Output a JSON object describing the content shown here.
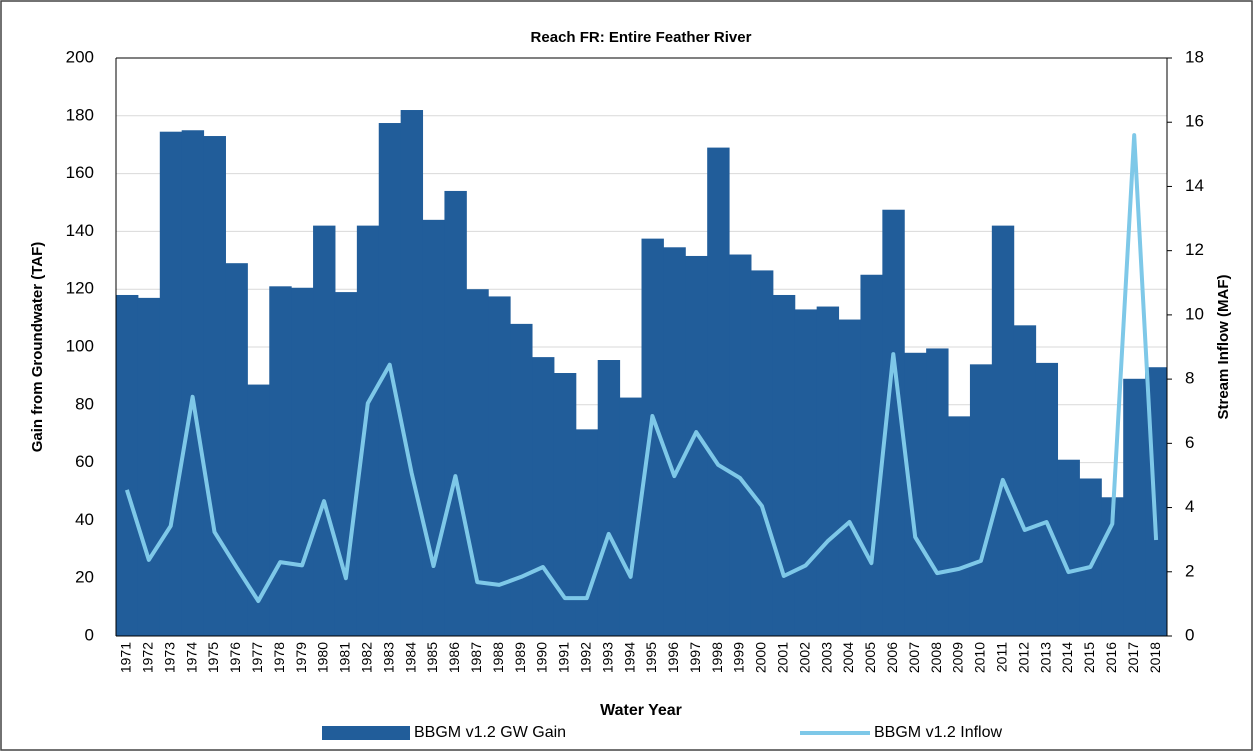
{
  "chart_data": {
    "type": "bar_line",
    "title": "Reach FR: Entire Feather River",
    "x_label": "Water Year",
    "y_label": "Gain from Groundwater (TAF)",
    "y2_label": "Stream Inflow (MAF)",
    "categories": [
      "1971",
      "1972",
      "1973",
      "1974",
      "1975",
      "1976",
      "1977",
      "1978",
      "1979",
      "1980",
      "1981",
      "1982",
      "1983",
      "1984",
      "1985",
      "1986",
      "1987",
      "1988",
      "1989",
      "1990",
      "1991",
      "1992",
      "1993",
      "1994",
      "1995",
      "1996",
      "1997",
      "1998",
      "1999",
      "2000",
      "2001",
      "2002",
      "2003",
      "2004",
      "2005",
      "2006",
      "2007",
      "2008",
      "2009",
      "2010",
      "2011",
      "2012",
      "2013",
      "2014",
      "2015",
      "2016",
      "2017",
      "2018"
    ],
    "series": [
      {
        "name": "BBGM v1.2  GW Gain",
        "type": "bar",
        "color": "#215d9a",
        "values": [
          118,
          117,
          174.5,
          175,
          173,
          129,
          87,
          121,
          120.5,
          142,
          119,
          142,
          177.5,
          182,
          144,
          154,
          120,
          117.5,
          108,
          96.5,
          91,
          71.5,
          95.5,
          82.5,
          137.5,
          134.5,
          131.5,
          169,
          132,
          126.5,
          118,
          113,
          114,
          109.5,
          125,
          147.5,
          98,
          99.5,
          76,
          94,
          142,
          107.5,
          94.5,
          61,
          54.5,
          48,
          89,
          93
        ]
      },
      {
        "name": "BBGM v1.2  Inflow",
        "type": "line",
        "axis": "y2",
        "color": "#7ec8e8",
        "values": [
          4.55,
          2.37,
          3.43,
          7.45,
          3.24,
          2.15,
          1.09,
          2.3,
          2.2,
          4.2,
          1.8,
          7.25,
          8.45,
          5.08,
          2.18,
          4.98,
          1.68,
          1.59,
          1.84,
          2.15,
          1.18,
          1.18,
          3.18,
          1.84,
          6.85,
          4.98,
          6.35,
          5.33,
          4.92,
          4.05,
          1.87,
          2.2,
          2.95,
          3.55,
          2.27,
          8.78,
          3.08,
          1.96,
          2.09,
          2.34,
          4.86,
          3.3,
          3.55,
          1.99,
          2.15,
          3.49,
          15.6,
          2.99
        ]
      }
    ],
    "ylim": [
      0,
      200
    ],
    "yticks": [
      0,
      20,
      40,
      60,
      80,
      100,
      120,
      140,
      160,
      180,
      200
    ],
    "y2lim": [
      0,
      18
    ],
    "y2ticks": [
      0,
      2,
      4,
      6,
      8,
      10,
      12,
      14,
      16,
      18
    ],
    "grid": true,
    "legend": "bottom"
  }
}
